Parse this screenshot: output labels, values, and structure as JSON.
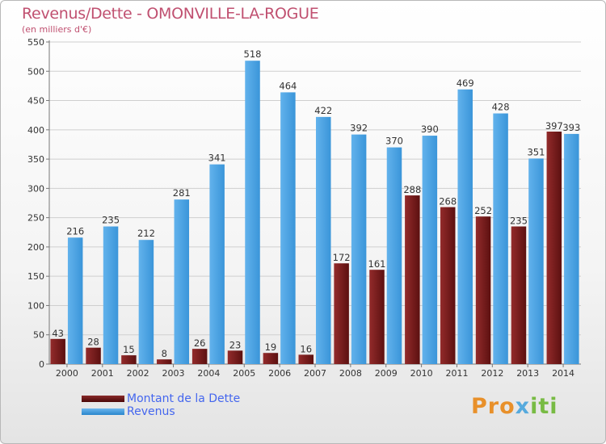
{
  "title": "Revenus/Dette - OMONVILLE-LA-ROGUE",
  "subtitle": "(en milliers d'€)",
  "legend": {
    "debt_label": "Montant de la Dette",
    "revenue_label": "Revenus"
  },
  "logo": {
    "p1": "Pro",
    "p2": "x",
    "p3": "iti"
  },
  "colors": {
    "debt": "#7a1e1e",
    "revenue": "#3d9be0",
    "title": "#c05070",
    "legend_text": "#4466ee"
  },
  "chart_data": {
    "type": "bar",
    "categories": [
      "2000",
      "2001",
      "2002",
      "2003",
      "2004",
      "2005",
      "2006",
      "2007",
      "2008",
      "2009",
      "2010",
      "2011",
      "2012",
      "2013",
      "2014"
    ],
    "series": [
      {
        "name": "Montant de la Dette",
        "values": [
          43,
          28,
          15,
          8,
          26,
          23,
          19,
          16,
          172,
          161,
          288,
          268,
          252,
          235,
          397
        ]
      },
      {
        "name": "Revenus",
        "values": [
          216,
          235,
          212,
          281,
          341,
          518,
          464,
          422,
          392,
          370,
          390,
          469,
          428,
          351,
          393
        ]
      }
    ],
    "title": "Revenus/Dette - OMONVILLE-LA-ROGUE",
    "ylabel": "(en milliers d'€)",
    "ylim": [
      0,
      550
    ],
    "yticks": [
      0,
      50,
      100,
      150,
      200,
      250,
      300,
      350,
      400,
      450,
      500,
      550
    ],
    "grid": true
  }
}
